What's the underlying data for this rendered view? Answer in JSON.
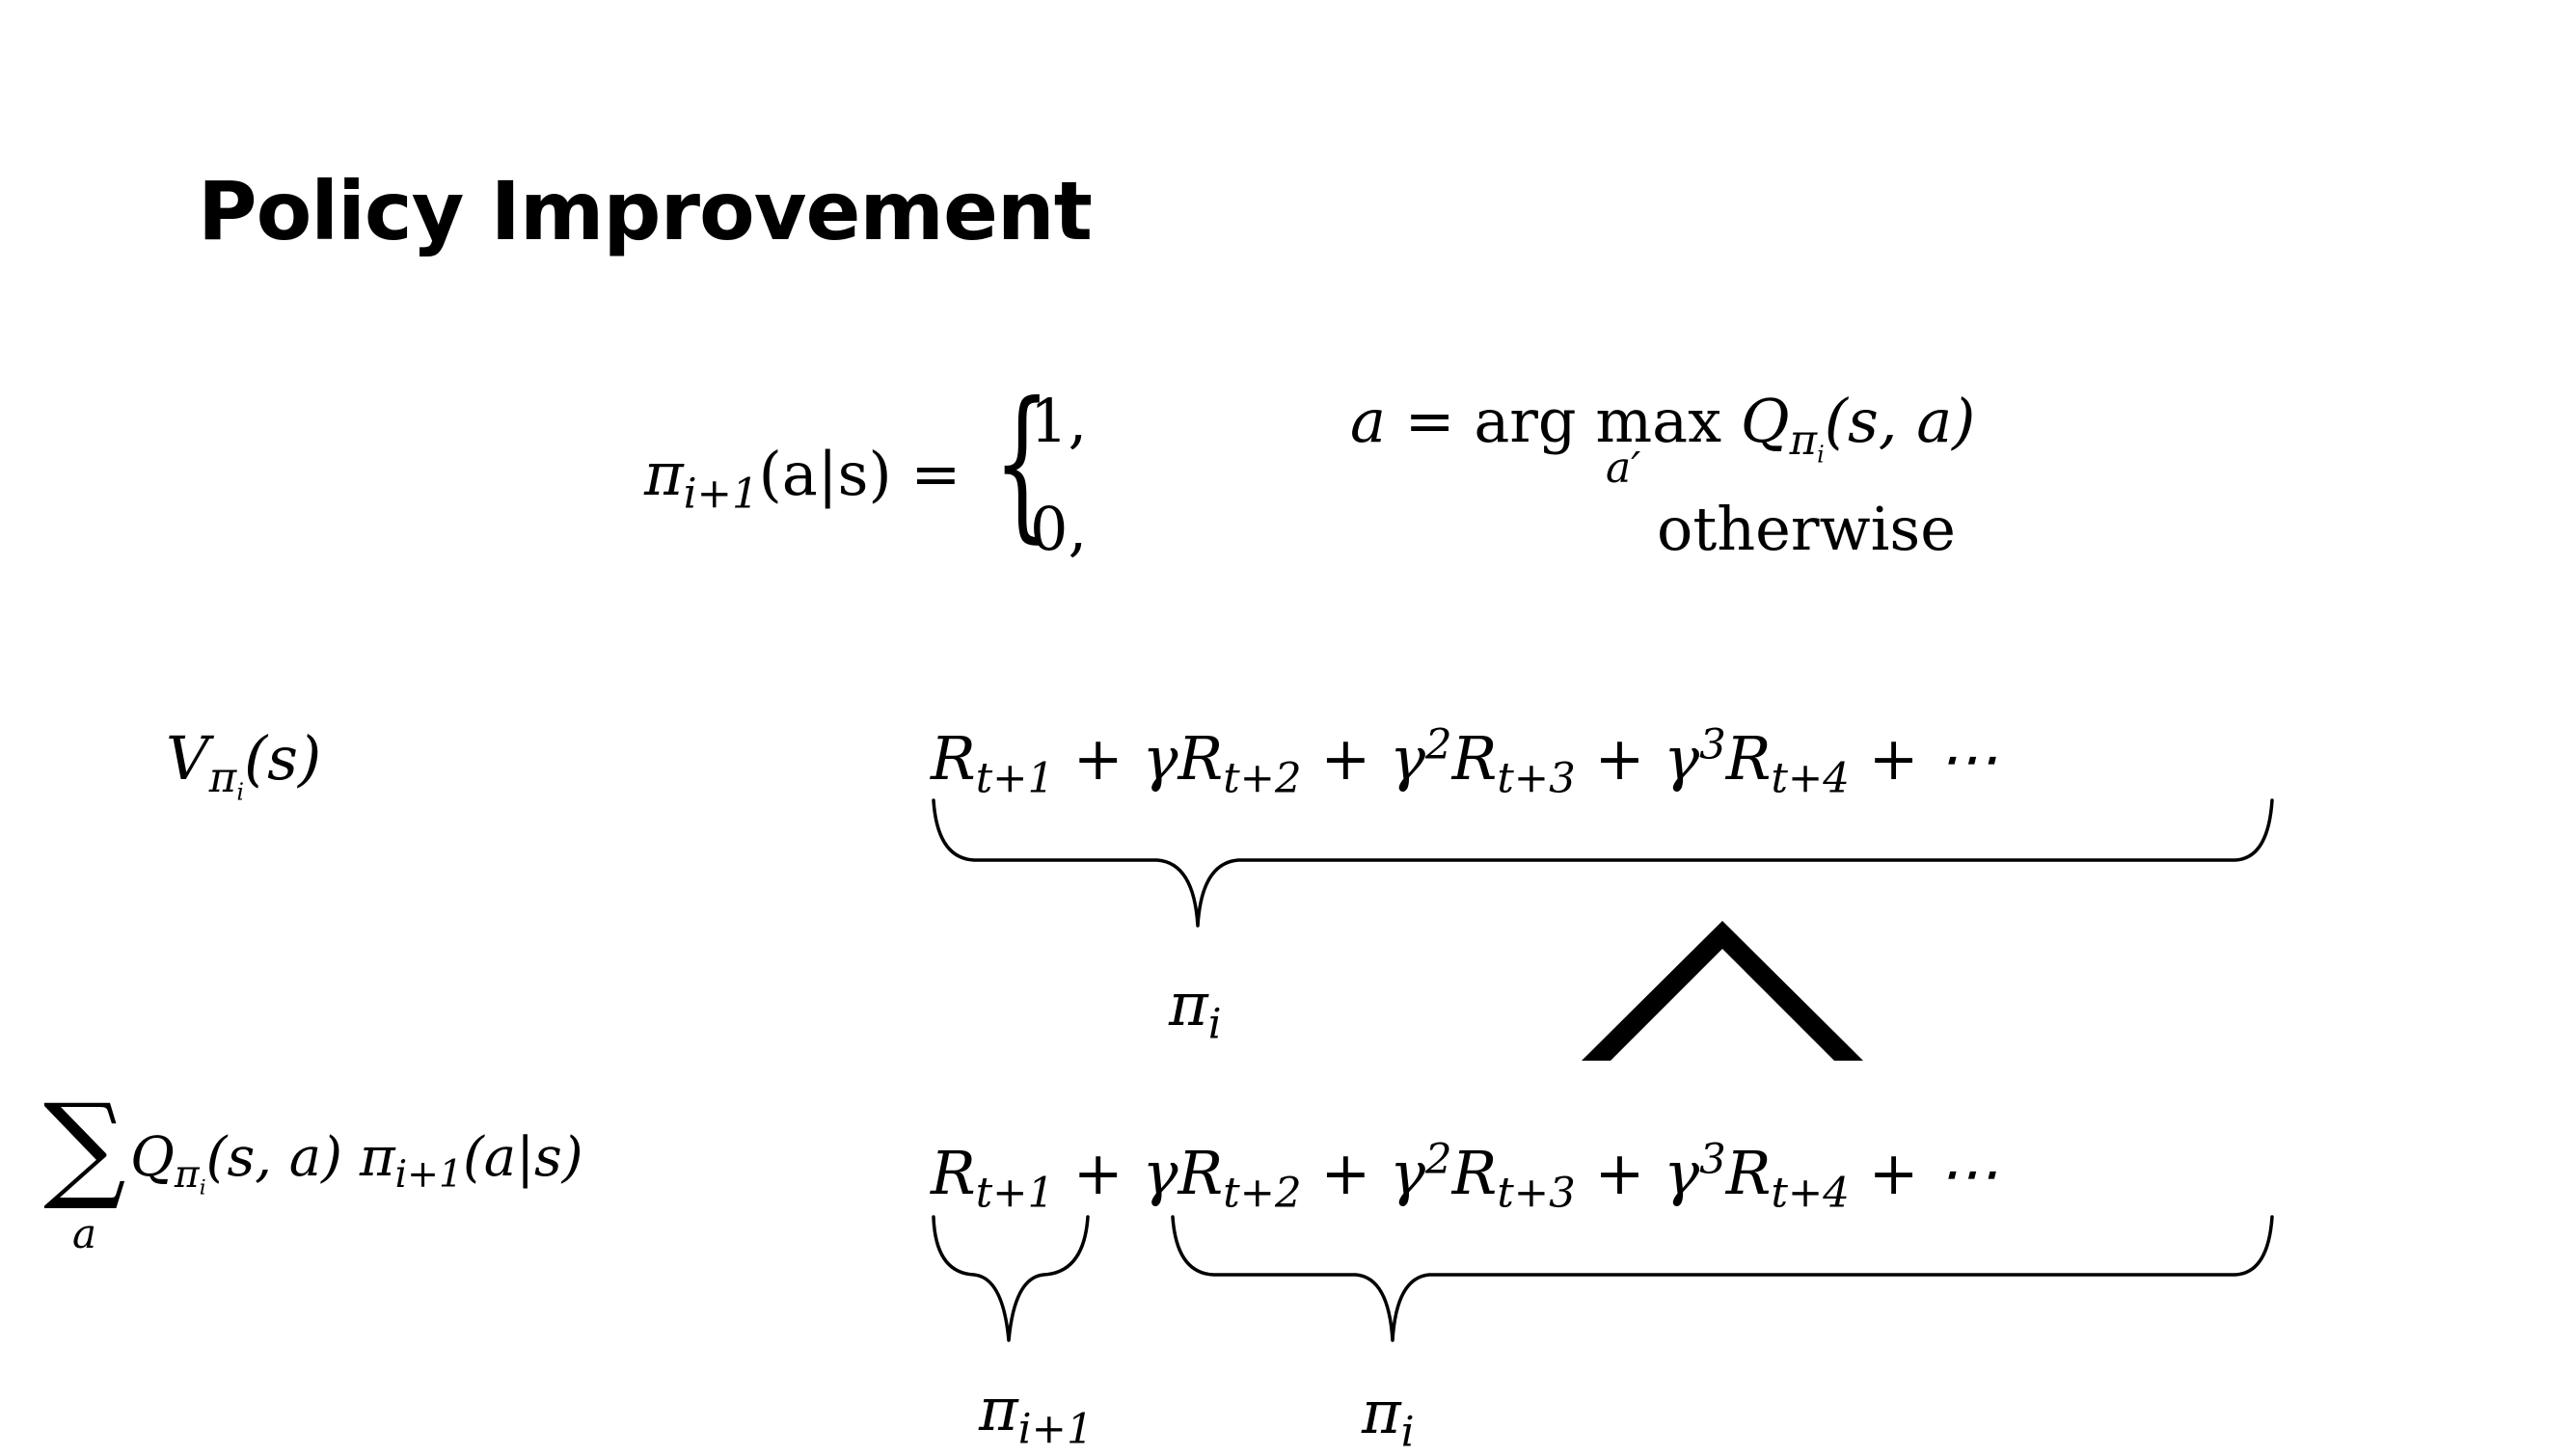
{
  "title": "Policy Improvement",
  "policy_def": {
    "lhs_pi": "π",
    "lhs_sub": "i+1",
    "lhs_args": "(a|s) =",
    "case1_value": "1,",
    "case1_cond_a": "a",
    "case1_cond_eq": " = arg max ",
    "case1_cond_under": "a′",
    "case1_cond_Q": "Q",
    "case1_cond_Q_sub": "π",
    "case1_cond_Q_subsub": "i",
    "case1_cond_args": "(s, a)",
    "case2_value": "0,",
    "case2_cond": "otherwise"
  },
  "value_row": {
    "V": "V",
    "V_sub": "π",
    "V_subsub": "i",
    "V_args": "(s)",
    "series": "R_{t+1} + γR_{t+2} + γ²R_{t+3} + γ³R_{t+4} + ⋯",
    "brace_label_pi": "π",
    "brace_label_sub": "i"
  },
  "comparison_symbol": "≥ (rotated wedge)",
  "q_row": {
    "sum_symbol": "∑",
    "sum_under": "a",
    "Q": "Q",
    "Q_sub": "π",
    "Q_subsub": "i",
    "Q_args": "(s, a) ",
    "pi": "π",
    "pi_sub": "i+1",
    "pi_args": "(a|s)",
    "brace1_pi": "π",
    "brace1_sub": "i+1",
    "brace2_pi": "π",
    "brace2_sub": "i"
  }
}
